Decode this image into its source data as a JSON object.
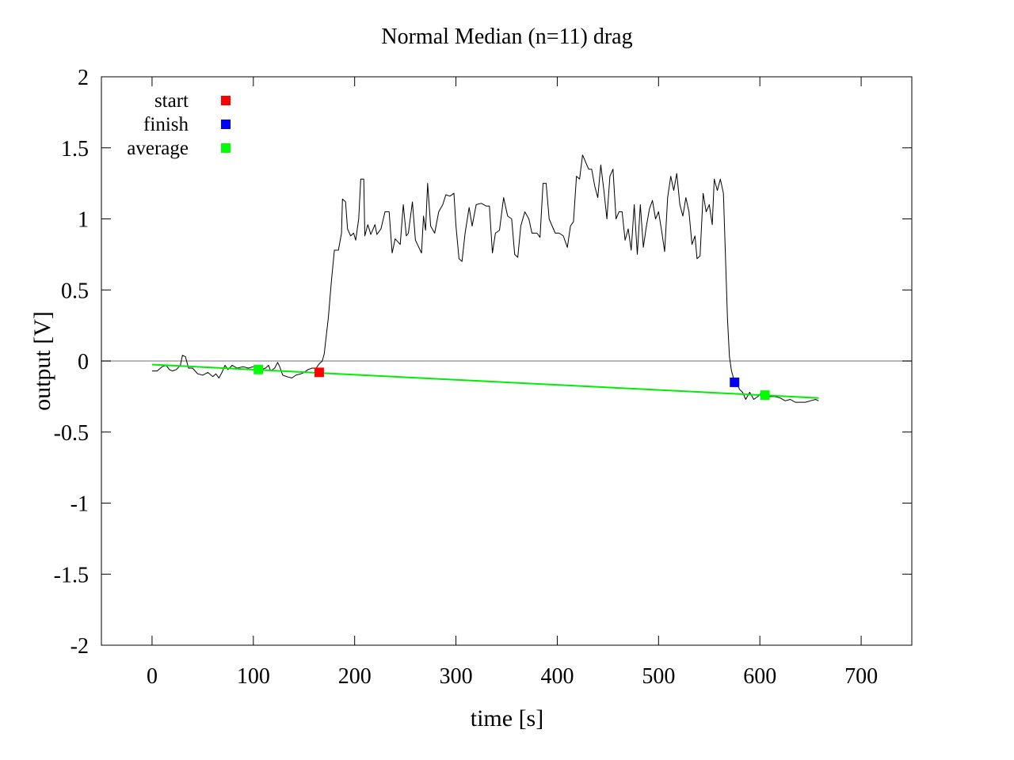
{
  "chart_data": {
    "type": "line",
    "title": "Normal  Median (n=11) drag",
    "xlabel": "time [s]",
    "ylabel": "output [V]",
    "xlim": [
      -50,
      750
    ],
    "ylim": [
      -2,
      2
    ],
    "xticks": [
      0,
      100,
      200,
      300,
      400,
      500,
      600,
      700
    ],
    "yticks": [
      2,
      1.5,
      1,
      0.5,
      0,
      -0.5,
      -1,
      -1.5,
      -2
    ],
    "xtick_labels": [
      "0",
      "100",
      "200",
      "300",
      "400",
      "500",
      "600",
      "700"
    ],
    "ytick_labels": [
      "2",
      "1.5",
      "1",
      "0.5",
      "0",
      "-0.5",
      "-1",
      "-1.5",
      "-2"
    ],
    "zero_line": {
      "y": 0,
      "color": "#a0a0a0"
    },
    "grid": false,
    "legend_placement": "top-left",
    "series": [
      {
        "name": "",
        "color": "#000000",
        "points": [
          [
            0,
            -0.07
          ],
          [
            5,
            -0.07
          ],
          [
            10,
            -0.04
          ],
          [
            14,
            -0.03
          ],
          [
            17,
            -0.06
          ],
          [
            20,
            -0.07
          ],
          [
            24,
            -0.06
          ],
          [
            28,
            -0.03
          ],
          [
            30,
            0.04
          ],
          [
            33,
            0.03
          ],
          [
            36,
            -0.05
          ],
          [
            40,
            -0.05
          ],
          [
            45,
            -0.09
          ],
          [
            50,
            -0.1
          ],
          [
            55,
            -0.08
          ],
          [
            60,
            -0.11
          ],
          [
            63,
            -0.09
          ],
          [
            66,
            -0.12
          ],
          [
            69,
            -0.08
          ],
          [
            72,
            -0.03
          ],
          [
            75,
            -0.06
          ],
          [
            79,
            -0.03
          ],
          [
            84,
            -0.05
          ],
          [
            90,
            -0.04
          ],
          [
            95,
            -0.05
          ],
          [
            100,
            -0.04
          ],
          [
            104,
            -0.03
          ],
          [
            108,
            -0.06
          ],
          [
            112,
            -0.05
          ],
          [
            115,
            -0.03
          ],
          [
            117,
            -0.07
          ],
          [
            121,
            -0.05
          ],
          [
            124,
            -0.01
          ],
          [
            126,
            -0.04
          ],
          [
            129,
            -0.1
          ],
          [
            133,
            -0.11
          ],
          [
            138,
            -0.12
          ],
          [
            142,
            -0.1
          ],
          [
            147,
            -0.09
          ],
          [
            150,
            -0.08
          ],
          [
            154,
            -0.06
          ],
          [
            158,
            -0.05
          ],
          [
            162,
            -0.05
          ],
          [
            165,
            -0.02
          ],
          [
            168,
            0.0
          ],
          [
            170,
            0.05
          ],
          [
            172,
            0.18
          ],
          [
            174,
            0.3
          ],
          [
            177,
            0.56
          ],
          [
            180,
            0.78
          ],
          [
            184,
            0.78
          ],
          [
            187,
            0.9
          ],
          [
            188,
            1.14
          ],
          [
            191,
            1.12
          ],
          [
            193,
            0.93
          ],
          [
            196,
            0.88
          ],
          [
            199,
            0.9
          ],
          [
            201,
            0.85
          ],
          [
            204,
            1.0
          ],
          [
            206,
            1.28
          ],
          [
            209,
            1.28
          ],
          [
            210,
            0.88
          ],
          [
            213,
            0.96
          ],
          [
            216,
            0.89
          ],
          [
            220,
            0.96
          ],
          [
            222,
            0.89
          ],
          [
            226,
            0.93
          ],
          [
            230,
            1.05
          ],
          [
            234,
            1.05
          ],
          [
            237,
            0.76
          ],
          [
            240,
            0.86
          ],
          [
            245,
            0.82
          ],
          [
            248,
            1.1
          ],
          [
            251,
            0.88
          ],
          [
            253,
            0.9
          ],
          [
            257,
            1.12
          ],
          [
            260,
            0.85
          ],
          [
            262,
            0.82
          ],
          [
            266,
            0.76
          ],
          [
            268,
            1.02
          ],
          [
            270,
            0.92
          ],
          [
            272,
            1.25
          ],
          [
            275,
            0.95
          ],
          [
            279,
            0.9
          ],
          [
            283,
            1.05
          ],
          [
            287,
            1.1
          ],
          [
            290,
            1.17
          ],
          [
            294,
            1.16
          ],
          [
            298,
            1.18
          ],
          [
            300,
            0.95
          ],
          [
            303,
            0.72
          ],
          [
            306,
            0.7
          ],
          [
            309,
            0.9
          ],
          [
            313,
            1.08
          ],
          [
            316,
            0.95
          ],
          [
            320,
            1.1
          ],
          [
            325,
            1.11
          ],
          [
            330,
            1.09
          ],
          [
            333,
            1.09
          ],
          [
            336,
            0.76
          ],
          [
            339,
            0.9
          ],
          [
            343,
            0.92
          ],
          [
            347,
            1.15
          ],
          [
            351,
            1.02
          ],
          [
            355,
            1.0
          ],
          [
            358,
            0.75
          ],
          [
            361,
            0.73
          ],
          [
            364,
            0.95
          ],
          [
            368,
            1.05
          ],
          [
            372,
            1.0
          ],
          [
            375,
            0.9
          ],
          [
            380,
            0.9
          ],
          [
            383,
            0.87
          ],
          [
            386,
            1.25
          ],
          [
            389,
            1.25
          ],
          [
            392,
            1.0
          ],
          [
            395,
            0.95
          ],
          [
            398,
            0.9
          ],
          [
            402,
            0.9
          ],
          [
            406,
            0.88
          ],
          [
            410,
            0.8
          ],
          [
            413,
            0.95
          ],
          [
            416,
            0.98
          ],
          [
            419,
            1.3
          ],
          [
            422,
            1.28
          ],
          [
            425,
            1.45
          ],
          [
            428,
            1.4
          ],
          [
            431,
            1.35
          ],
          [
            434,
            1.35
          ],
          [
            437,
            1.23
          ],
          [
            440,
            1.15
          ],
          [
            443,
            1.38
          ],
          [
            446,
            1.2
          ],
          [
            449,
            1.0
          ],
          [
            452,
            1.3
          ],
          [
            455,
            1.35
          ],
          [
            458,
            1.0
          ],
          [
            461,
            1.05
          ],
          [
            464,
            1.05
          ],
          [
            467,
            0.85
          ],
          [
            470,
            0.93
          ],
          [
            473,
            0.78
          ],
          [
            476,
            1.1
          ],
          [
            479,
            0.75
          ],
          [
            482,
            1.1
          ],
          [
            485,
            0.8
          ],
          [
            488,
            0.95
          ],
          [
            491,
            1.07
          ],
          [
            494,
            1.13
          ],
          [
            497,
            1.0
          ],
          [
            500,
            1.05
          ],
          [
            503,
            0.92
          ],
          [
            506,
            0.77
          ],
          [
            509,
            1.15
          ],
          [
            512,
            1.3
          ],
          [
            515,
            1.2
          ],
          [
            518,
            1.32
          ],
          [
            521,
            1.1
          ],
          [
            524,
            1.02
          ],
          [
            527,
            1.15
          ],
          [
            530,
            1.05
          ],
          [
            533,
            0.82
          ],
          [
            536,
            0.88
          ],
          [
            538,
            0.72
          ],
          [
            541,
            0.74
          ],
          [
            544,
            1.18
          ],
          [
            547,
            1.05
          ],
          [
            550,
            1.1
          ],
          [
            553,
            0.96
          ],
          [
            555,
            1.28
          ],
          [
            558,
            1.2
          ],
          [
            561,
            1.28
          ],
          [
            564,
            1.18
          ],
          [
            566,
            0.75
          ],
          [
            568,
            0.3
          ],
          [
            570,
            0.03
          ],
          [
            572,
            -0.07
          ],
          [
            574,
            -0.12
          ],
          [
            577,
            -0.15
          ],
          [
            580,
            -0.2
          ],
          [
            583,
            -0.22
          ],
          [
            586,
            -0.27
          ],
          [
            590,
            -0.22
          ],
          [
            594,
            -0.27
          ],
          [
            598,
            -0.25
          ],
          [
            602,
            -0.22
          ],
          [
            606,
            -0.27
          ],
          [
            610,
            -0.25
          ],
          [
            615,
            -0.25
          ],
          [
            620,
            -0.26
          ],
          [
            625,
            -0.28
          ],
          [
            630,
            -0.27
          ],
          [
            635,
            -0.29
          ],
          [
            640,
            -0.29
          ],
          [
            645,
            -0.29
          ],
          [
            650,
            -0.28
          ],
          [
            655,
            -0.27
          ],
          [
            658,
            -0.28
          ]
        ]
      },
      {
        "name": "",
        "color": "#00ee00",
        "points": [
          [
            0,
            -0.025
          ],
          [
            658,
            -0.26
          ]
        ]
      }
    ],
    "markers": [
      {
        "name": "start",
        "color": "#ff0000",
        "x": 165,
        "y": -0.08
      },
      {
        "name": "finish",
        "color": "#0000ff",
        "x": 575,
        "y": -0.15
      },
      {
        "name": "average",
        "color": "#00ff00",
        "x": 105,
        "y": -0.06
      },
      {
        "name": "average",
        "color": "#00ff00",
        "x": 605,
        "y": -0.24
      }
    ],
    "legend": [
      {
        "label": "start",
        "color": "#ff0000"
      },
      {
        "label": "finish",
        "color": "#0000ff"
      },
      {
        "label": "average",
        "color": "#00ff00"
      }
    ]
  }
}
